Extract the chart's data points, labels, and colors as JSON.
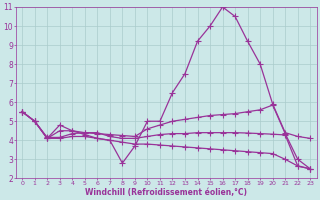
{
  "xlabel": "Windchill (Refroidissement éolien,°C)",
  "xlim": [
    -0.5,
    23.5
  ],
  "ylim": [
    2,
    11
  ],
  "xticks": [
    0,
    1,
    2,
    3,
    4,
    5,
    6,
    7,
    8,
    9,
    10,
    11,
    12,
    13,
    14,
    15,
    16,
    17,
    18,
    19,
    20,
    21,
    22,
    23
  ],
  "yticks": [
    2,
    3,
    4,
    5,
    6,
    7,
    8,
    9,
    10,
    11
  ],
  "bg_color": "#cce8e8",
  "grid_color": "#aacccc",
  "line_color": "#993399",
  "line_width": 0.9,
  "marker": "+",
  "marker_size": 4,
  "series": [
    {
      "x": [
        0,
        1,
        2,
        3,
        4,
        5,
        6,
        7,
        8,
        9,
        10,
        11,
        12,
        13,
        14,
        15,
        16,
        17,
        18,
        19,
        20,
        21,
        22,
        23
      ],
      "y": [
        5.5,
        5.0,
        4.1,
        4.8,
        4.5,
        4.3,
        4.1,
        4.0,
        2.8,
        3.7,
        5.0,
        5.0,
        6.5,
        7.5,
        9.2,
        10.0,
        11.0,
        10.5,
        9.2,
        8.0,
        5.9,
        4.4,
        4.2,
        4.1
      ]
    },
    {
      "x": [
        0,
        1,
        2,
        3,
        4,
        5,
        6,
        7,
        8,
        9,
        10,
        11,
        12,
        13,
        14,
        15,
        16,
        17,
        18,
        19,
        20,
        21,
        22,
        23
      ],
      "y": [
        5.5,
        5.0,
        4.1,
        4.5,
        4.5,
        4.4,
        4.35,
        4.3,
        4.25,
        4.2,
        4.6,
        4.8,
        5.0,
        5.1,
        5.2,
        5.3,
        5.35,
        5.4,
        5.5,
        5.6,
        5.85,
        4.35,
        3.0,
        2.5
      ]
    },
    {
      "x": [
        0,
        1,
        2,
        3,
        4,
        5,
        6,
        7,
        8,
        9,
        10,
        11,
        12,
        13,
        14,
        15,
        16,
        17,
        18,
        19,
        20,
        21,
        22,
        23
      ],
      "y": [
        5.5,
        5.0,
        4.15,
        4.15,
        4.35,
        4.4,
        4.4,
        4.2,
        4.1,
        4.1,
        4.2,
        4.3,
        4.35,
        4.35,
        4.4,
        4.4,
        4.4,
        4.4,
        4.38,
        4.35,
        4.32,
        4.28,
        2.65,
        2.5
      ]
    },
    {
      "x": [
        0,
        1,
        2,
        3,
        4,
        5,
        6,
        7,
        8,
        9,
        10,
        11,
        12,
        13,
        14,
        15,
        16,
        17,
        18,
        19,
        20,
        21,
        22,
        23
      ],
      "y": [
        5.5,
        5.0,
        4.1,
        4.1,
        4.2,
        4.2,
        4.1,
        4.0,
        3.9,
        3.8,
        3.8,
        3.75,
        3.7,
        3.65,
        3.6,
        3.55,
        3.5,
        3.45,
        3.4,
        3.35,
        3.3,
        3.0,
        2.65,
        2.5
      ]
    }
  ]
}
